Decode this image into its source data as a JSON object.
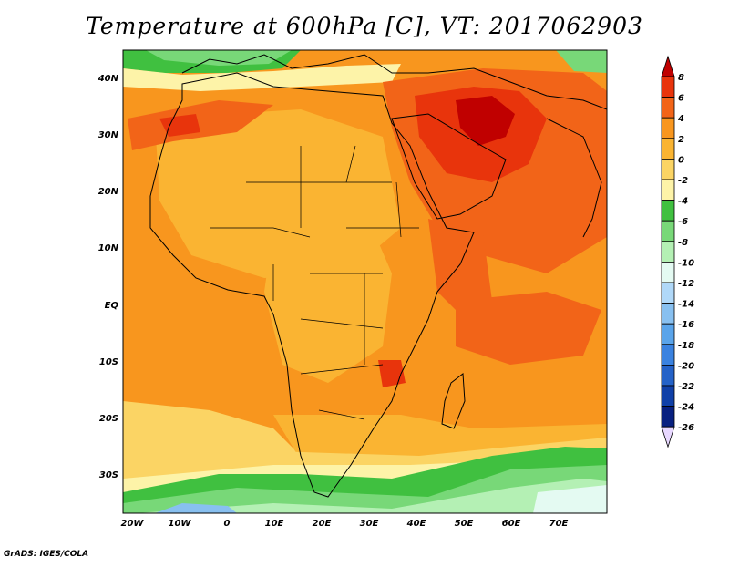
{
  "title": "Temperature at 600hPa [C], VT: 2017062903",
  "footer": "GrADS: IGES/COLA",
  "map": {
    "lat_labels": [
      "40N",
      "30N",
      "20N",
      "10N",
      "EQ",
      "10S",
      "20S",
      "30S"
    ],
    "lon_labels": [
      "20W",
      "10W",
      "0",
      "10E",
      "20E",
      "30E",
      "40E",
      "50E",
      "60E",
      "70E"
    ]
  },
  "colorbar": {
    "labels": [
      "8",
      "6",
      "4",
      "2",
      "0",
      "-2",
      "-4",
      "-6",
      "-8",
      "-10",
      "-12",
      "-14",
      "-16",
      "-18",
      "-20",
      "-22",
      "-24",
      "-26"
    ],
    "colors": {
      "c_gt8": "#c00000",
      "c6_8": "#e8340c",
      "c4_6": "#f26418",
      "c2_4": "#f8961e",
      "c0_2": "#fab432",
      "cm2_0": "#fbd464",
      "cm4_m2": "#fdf3a8",
      "cm6_m4": "#40c040",
      "cm8_m6": "#78d878",
      "cm10_m8": "#b4f0b4",
      "cm12_m10": "#e4faf2",
      "cm14_m12": "#b0d8f8",
      "cm16_m14": "#88c0f0",
      "cm18_m16": "#5aa4ea",
      "cm20_m18": "#3a82e0",
      "cm22_m20": "#2462c8",
      "cm24_m22": "#1040a8",
      "cm26_m24": "#082080",
      "c_lt_m26": "#e8d8ff"
    }
  }
}
